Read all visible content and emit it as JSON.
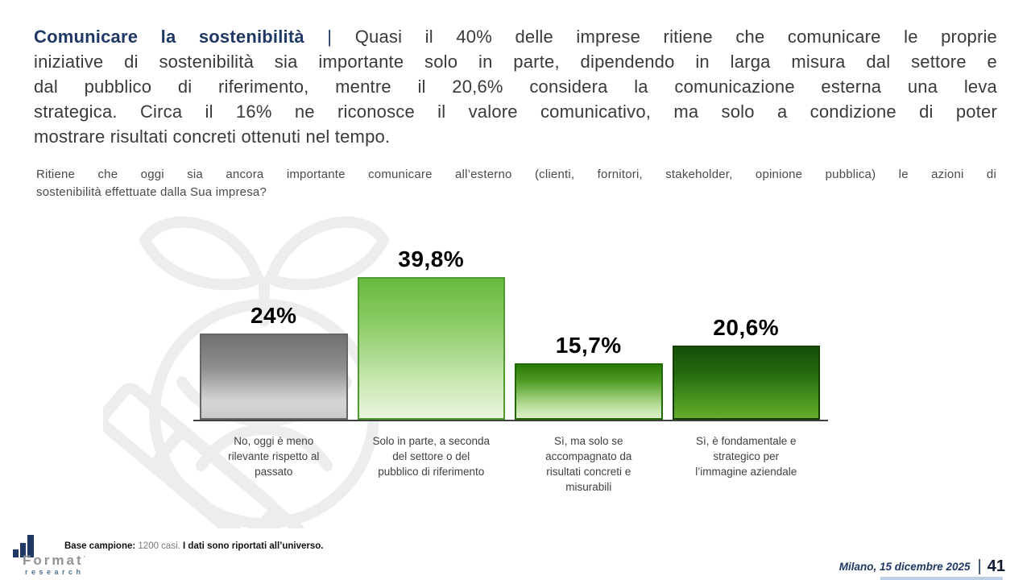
{
  "intro": {
    "title": "Comunicare la sostenibilità",
    "separator": "|",
    "line1_rest": "Quasi il 40% delle imprese ritiene che comunicare le proprie",
    "line2": "iniziative di sostenibilità sia importante solo in parte, dipendendo in larga misura dal settore e",
    "line3": "dal pubblico di riferimento, mentre il 20,6% considera la comunicazione esterna una leva",
    "line4": "strategica. Circa il 16% ne riconosce il valore comunicativo, ma solo a condizione di poter",
    "line5": "mostrare risultati concreti ottenuti nel tempo."
  },
  "question": {
    "line1": "Ritiene che oggi sia ancora importante comunicare all’esterno (clienti, fornitori, stakeholder, opinione pubblica) le azioni di",
    "line2": "sostenibilità effettuate dalla Sua impresa?"
  },
  "chart_data": {
    "type": "bar",
    "categories": [
      "No, oggi è meno\nrilevante rispetto al\npassato",
      "Solo in parte, a seconda\ndel settore o del\npubblico di riferimento",
      "Sì, ma solo se\naccompagnato da\nrisultati concreti e\nmisurabili",
      "Sì, è fondamentale e\nstrategico per\nl’immagine aziendale"
    ],
    "values": [
      24,
      39.8,
      15.7,
      20.6
    ],
    "value_labels": [
      "24%",
      "39,8%",
      "15,7%",
      "20,6%"
    ],
    "ylim": [
      0,
      45
    ],
    "grid": false,
    "legend": false,
    "bar_styles": [
      {
        "stops": [
          "#717171",
          "#8F8F8F 40%",
          "#D6D6D6 80%",
          "#C9C9C9 100%"
        ],
        "border": "#666666"
      },
      {
        "stops": [
          "#66BB3E",
          "#8FCE6B 35%",
          "#CBE8B4 75%",
          "#EAF6DF 100%"
        ],
        "border": "#4E9A2E"
      },
      {
        "stops": [
          "#2B7A06",
          "#4E9C24 30%",
          "#B5DD95 75%",
          "#DFF0CC 100%"
        ],
        "border": "#1E6B00"
      },
      {
        "stops": [
          "#174E08",
          "#23680F 35%",
          "#4F9A22 80%",
          "#64AC2D 100%"
        ],
        "border": "#143F00"
      }
    ]
  },
  "footer": {
    "base_label": "Base campione:",
    "base_detail": "1200 casi.",
    "base_note": "I dati sono riportati all’universo.",
    "logo_name": "Format",
    "logo_mark": "·",
    "logo_sub": "research",
    "date": "Milano, 15 dicembre 2025",
    "separator": "|",
    "page_number": "41"
  },
  "colors": {
    "navy": "#1F3864",
    "body_text": "#3A3A3A",
    "question_text": "#4A4A4A",
    "value_text": "#000000",
    "label_text": "#3F3F3F",
    "axis": "#3F3F3F",
    "logo_gray": "#8F9498",
    "logo_blue": "#4D7396",
    "page_number": "#0E1B33",
    "accent_strip": "#BFCFE6",
    "watermark": "#EDEDED"
  }
}
